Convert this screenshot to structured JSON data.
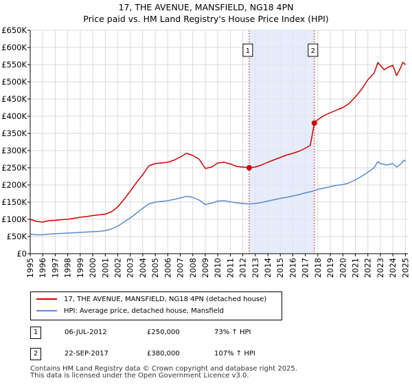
{
  "chart_data": {
    "type": "line",
    "title": "17, THE AVENUE, MANSFIELD, NG18 4PN",
    "subtitle": "Price paid vs. HM Land Registry's House Price Index (HPI)",
    "xlim": [
      1995,
      2025.2
    ],
    "ylim": [
      0,
      650000
    ],
    "x_ticks": [
      "1995",
      "1996",
      "1997",
      "1998",
      "1999",
      "2000",
      "2001",
      "2002",
      "2003",
      "2004",
      "2005",
      "2006",
      "2007",
      "2008",
      "2009",
      "2010",
      "2011",
      "2012",
      "2013",
      "2014",
      "2015",
      "2016",
      "2017",
      "2018",
      "2019",
      "2020",
      "2021",
      "2022",
      "2023",
      "2024",
      "2025"
    ],
    "y_ticks": [
      {
        "value": 0,
        "label": "£0"
      },
      {
        "value": 50000,
        "label": "£50K"
      },
      {
        "value": 100000,
        "label": "£100K"
      },
      {
        "value": 150000,
        "label": "£150K"
      },
      {
        "value": 200000,
        "label": "£200K"
      },
      {
        "value": 250000,
        "label": "£250K"
      },
      {
        "value": 300000,
        "label": "£300K"
      },
      {
        "value": 350000,
        "label": "£350K"
      },
      {
        "value": 400000,
        "label": "£400K"
      },
      {
        "value": 450000,
        "label": "£450K"
      },
      {
        "value": 500000,
        "label": "£500K"
      },
      {
        "value": 550000,
        "label": "£550K"
      },
      {
        "value": 600000,
        "label": "£600K"
      },
      {
        "value": 650000,
        "label": "£650K"
      }
    ],
    "grid": true,
    "shaded_span": [
      2012.51,
      2017.72
    ],
    "series": [
      {
        "name": "17, THE AVENUE, MANSFIELD, NG18 4PN (detached house)",
        "color": "#cc0000",
        "points": [
          [
            1995,
            100000
          ],
          [
            1995.5,
            94000
          ],
          [
            1996,
            92000
          ],
          [
            1996.5,
            96000
          ],
          [
            1997,
            97000
          ],
          [
            1997.5,
            99000
          ],
          [
            1998,
            100000
          ],
          [
            1998.5,
            103000
          ],
          [
            1999,
            106000
          ],
          [
            1999.5,
            108000
          ],
          [
            2000,
            111000
          ],
          [
            2000.5,
            113000
          ],
          [
            2001,
            115000
          ],
          [
            2001.5,
            122000
          ],
          [
            2002,
            136000
          ],
          [
            2002.5,
            158000
          ],
          [
            2003,
            182000
          ],
          [
            2003.5,
            207000
          ],
          [
            2004,
            230000
          ],
          [
            2004.5,
            256000
          ],
          [
            2005,
            262000
          ],
          [
            2005.5,
            264000
          ],
          [
            2006,
            266000
          ],
          [
            2006.5,
            272000
          ],
          [
            2007,
            281000
          ],
          [
            2007.5,
            292000
          ],
          [
            2008,
            286000
          ],
          [
            2008.5,
            275000
          ],
          [
            2009,
            248000
          ],
          [
            2009.5,
            252000
          ],
          [
            2010,
            264000
          ],
          [
            2010.5,
            266000
          ],
          [
            2011,
            261000
          ],
          [
            2011.5,
            254000
          ],
          [
            2012,
            252000
          ],
          [
            2012.51,
            250000
          ],
          [
            2013,
            252000
          ],
          [
            2013.5,
            258000
          ],
          [
            2014,
            266000
          ],
          [
            2014.5,
            273000
          ],
          [
            2015,
            280000
          ],
          [
            2015.5,
            287000
          ],
          [
            2016,
            292000
          ],
          [
            2016.5,
            298000
          ],
          [
            2017,
            307000
          ],
          [
            2017.4,
            315000
          ],
          [
            2017.72,
            380000
          ],
          [
            2018,
            390000
          ],
          [
            2018.5,
            402000
          ],
          [
            2019,
            410000
          ],
          [
            2019.5,
            418000
          ],
          [
            2020,
            425000
          ],
          [
            2020.5,
            437000
          ],
          [
            2021,
            456000
          ],
          [
            2021.5,
            478000
          ],
          [
            2022,
            506000
          ],
          [
            2022.5,
            525000
          ],
          [
            2022.8,
            556000
          ],
          [
            2023,
            548000
          ],
          [
            2023.3,
            535000
          ],
          [
            2023.6,
            542000
          ],
          [
            2024,
            548000
          ],
          [
            2024.3,
            518000
          ],
          [
            2024.6,
            540000
          ],
          [
            2024.8,
            557000
          ],
          [
            2025,
            550000
          ]
        ]
      },
      {
        "name": "HPI: Average price, detached house, Mansfield",
        "color": "#5b8ac9",
        "points": [
          [
            1995,
            57000
          ],
          [
            1995.5,
            55000
          ],
          [
            1996,
            55000
          ],
          [
            1996.5,
            57000
          ],
          [
            1997,
            58000
          ],
          [
            1997.5,
            59000
          ],
          [
            1998,
            60000
          ],
          [
            1998.5,
            61000
          ],
          [
            1999,
            62000
          ],
          [
            1999.5,
            63000
          ],
          [
            2000,
            64000
          ],
          [
            2000.5,
            65000
          ],
          [
            2001,
            67000
          ],
          [
            2001.5,
            72000
          ],
          [
            2002,
            80000
          ],
          [
            2002.5,
            92000
          ],
          [
            2003,
            104000
          ],
          [
            2003.5,
            118000
          ],
          [
            2004,
            132000
          ],
          [
            2004.5,
            145000
          ],
          [
            2005,
            150000
          ],
          [
            2005.5,
            152000
          ],
          [
            2006,
            154000
          ],
          [
            2006.5,
            158000
          ],
          [
            2007,
            162000
          ],
          [
            2007.5,
            167000
          ],
          [
            2008,
            164000
          ],
          [
            2008.5,
            156000
          ],
          [
            2009,
            143000
          ],
          [
            2009.5,
            147000
          ],
          [
            2010,
            153000
          ],
          [
            2010.5,
            154000
          ],
          [
            2011,
            151000
          ],
          [
            2011.5,
            148000
          ],
          [
            2012,
            146000
          ],
          [
            2012.5,
            144500
          ],
          [
            2013,
            146000
          ],
          [
            2013.5,
            149000
          ],
          [
            2014,
            153000
          ],
          [
            2014.5,
            157000
          ],
          [
            2015,
            161000
          ],
          [
            2015.5,
            164000
          ],
          [
            2016,
            168000
          ],
          [
            2016.5,
            172000
          ],
          [
            2017,
            177000
          ],
          [
            2017.5,
            181000
          ],
          [
            2017.72,
            183500
          ],
          [
            2018,
            187000
          ],
          [
            2018.5,
            191000
          ],
          [
            2019,
            195000
          ],
          [
            2019.5,
            199000
          ],
          [
            2020,
            201000
          ],
          [
            2020.5,
            206000
          ],
          [
            2021,
            215000
          ],
          [
            2021.5,
            225000
          ],
          [
            2022,
            237000
          ],
          [
            2022.5,
            250000
          ],
          [
            2022.8,
            268000
          ],
          [
            2023,
            262000
          ],
          [
            2023.5,
            258000
          ],
          [
            2024,
            262000
          ],
          [
            2024.3,
            252000
          ],
          [
            2024.6,
            260000
          ],
          [
            2024.9,
            272000
          ],
          [
            2025,
            268000
          ]
        ]
      }
    ],
    "sales": [
      {
        "num": "1",
        "x": 2012.51,
        "y": 250000,
        "date": "06-JUL-2012",
        "price": "£250,000",
        "hpi": "73% ↑ HPI"
      },
      {
        "num": "2",
        "x": 2017.72,
        "y": 380000,
        "date": "22-SEP-2017",
        "price": "£380,000",
        "hpi": "107% ↑ HPI"
      }
    ]
  },
  "footer": {
    "line1": "Contains HM Land Registry data © Crown copyright and database right 2025.",
    "line2": "This data is licensed under the Open Government Licence v3.0."
  }
}
